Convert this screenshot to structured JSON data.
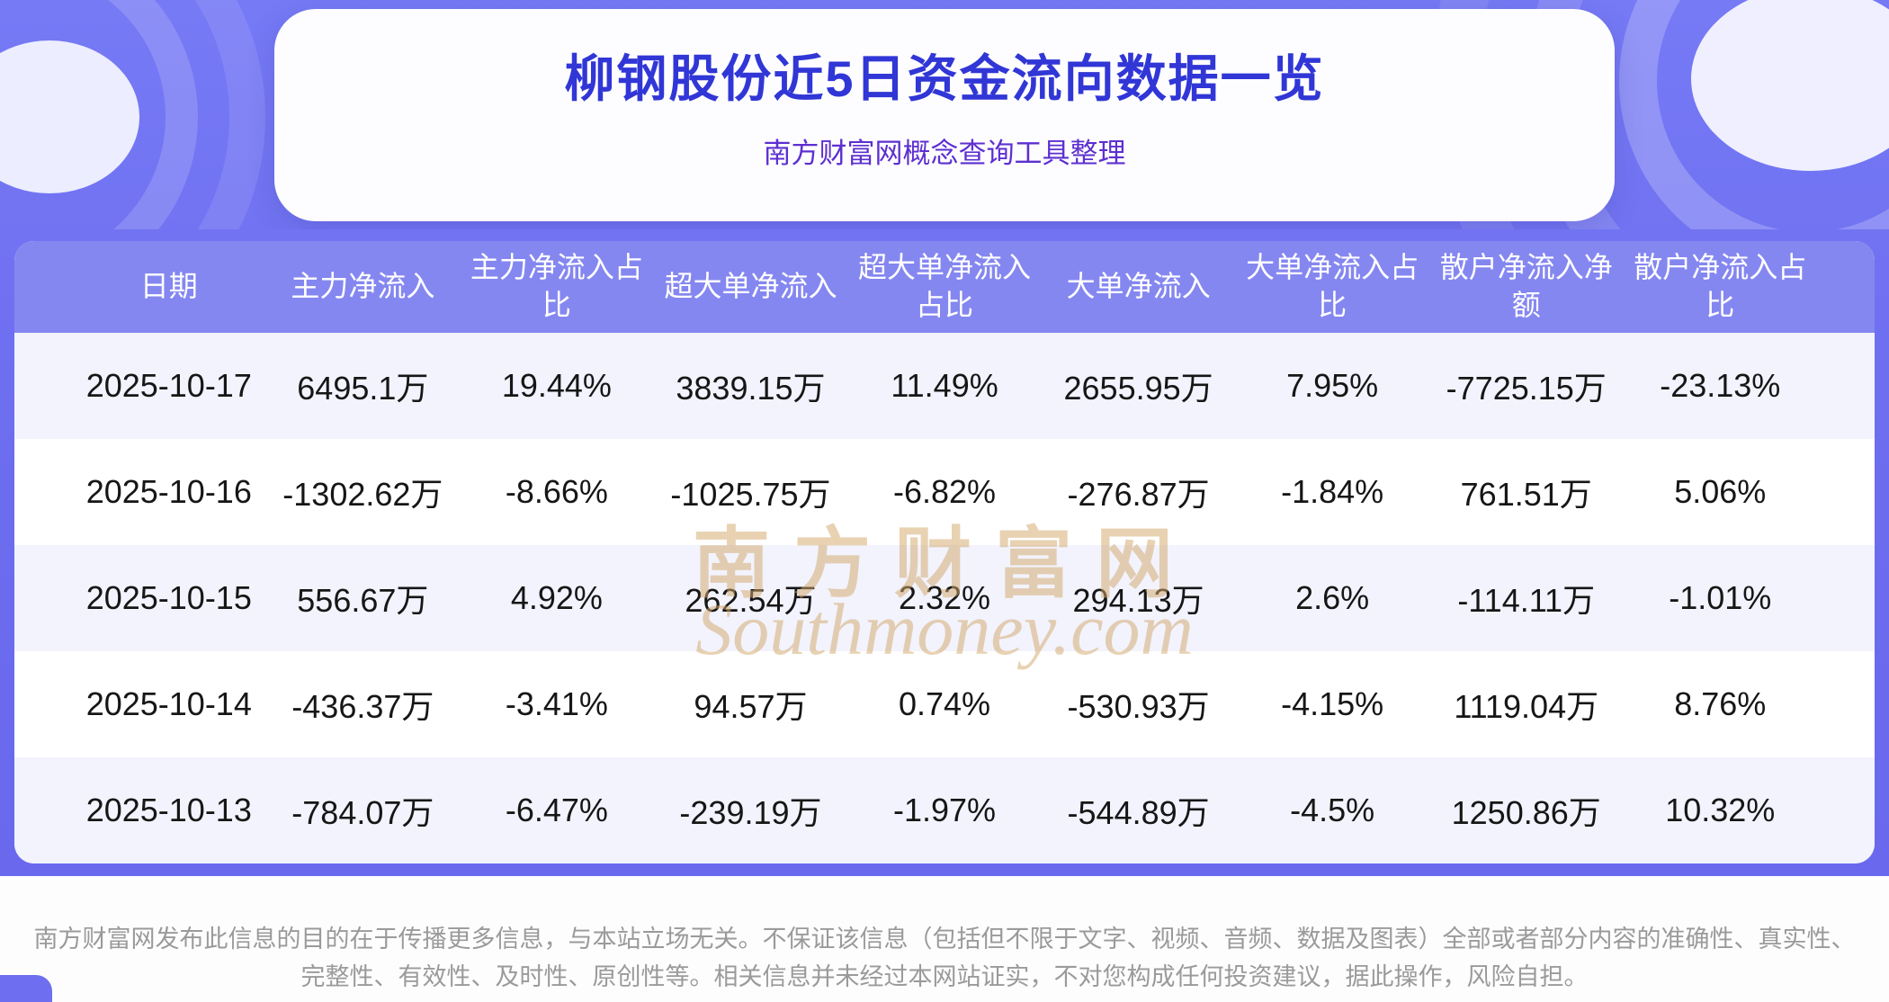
{
  "header": {
    "title": "柳钢股份近5日资金流向数据一览",
    "subtitle": "南方财富网概念查询工具整理"
  },
  "chart_data": {
    "type": "table",
    "title": "柳钢股份近5日资金流向数据一览",
    "subtitle": "南方财富网概念查询工具整理",
    "columns": [
      "日期",
      "主力净流入",
      "主力净流入占比",
      "超大单净流入",
      "超大单净流入占比",
      "大单净流入",
      "大单净流入占比",
      "散户净流入净额",
      "散户净流入占比"
    ],
    "rows": [
      [
        "2025-10-17",
        "6495.1万",
        "19.44%",
        "3839.15万",
        "11.49%",
        "2655.95万",
        "7.95%",
        "-7725.15万",
        "-23.13%"
      ],
      [
        "2025-10-16",
        "-1302.62万",
        "-8.66%",
        "-1025.75万",
        "-6.82%",
        "-276.87万",
        "-1.84%",
        "761.51万",
        "5.06%"
      ],
      [
        "2025-10-15",
        "556.67万",
        "4.92%",
        "262.54万",
        "2.32%",
        "294.13万",
        "2.6%",
        "-114.11万",
        "-1.01%"
      ],
      [
        "2025-10-14",
        "-436.37万",
        "-3.41%",
        "94.57万",
        "0.74%",
        "-530.93万",
        "-4.15%",
        "1119.04万",
        "8.76%"
      ],
      [
        "2025-10-13",
        "-784.07万",
        "-6.47%",
        "-239.19万",
        "-1.97%",
        "-544.89万",
        "-4.5%",
        "1250.86万",
        "10.32%"
      ]
    ]
  },
  "watermark": {
    "cn": "南方财富网",
    "en": "Southmoney.com"
  },
  "footer": {
    "disclaimer": "南方财富网发布此信息的目的在于传播更多信息，与本站立场无关。不保证该信息（包括但不限于文字、视频、音频、数据及图表）全部或者部分内容的准确性、真实性、完整性、有效性、及时性、原创性等。相关信息并未经过本网站证实，不对您构成任何投资建议，据此操作，风险自担。"
  },
  "colors": {
    "banner_purple": "#6f6ff1",
    "table_header_purple": "#8587f0",
    "row_alt": "#f2f3fd",
    "title_blue": "#3136d6",
    "subtitle_purple": "#5d2fd0",
    "watermark_gold": "#d3a86b",
    "footer_text_gray": "#9a9a9a"
  }
}
